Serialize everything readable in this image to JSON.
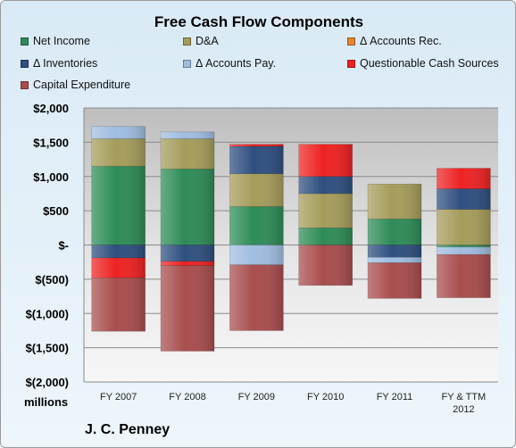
{
  "chart_data": {
    "type": "bar",
    "stacked": true,
    "title": "Free Cash Flow Components",
    "units_label": "millions",
    "footer": "J. C. Penney",
    "categories": [
      "FY 2007",
      "FY 2008",
      "FY 2009",
      "FY 2010",
      "FY 2011",
      [
        "FY & TTM",
        "2012"
      ]
    ],
    "ylim": [
      -2000,
      2000
    ],
    "yticks": [
      2000,
      1500,
      1000,
      500,
      0,
      -500,
      -1000,
      -1500,
      -2000
    ],
    "ytick_labels": [
      "$2,000",
      "$1,500",
      "$1,000",
      "$500",
      "$-",
      "$(500)",
      "$(1,000)",
      "$(1,500)",
      "$(2,000)"
    ],
    "grid": true,
    "legend_position": "top",
    "series": [
      {
        "name": "Net Income",
        "color": "#2e8b57",
        "values": [
          1150,
          1110,
          560,
          250,
          380,
          -30
        ]
      },
      {
        "name": "D&A",
        "color": "#a59c5a",
        "values": [
          400,
          440,
          480,
          500,
          510,
          520
        ]
      },
      {
        "name": "Δ Accounts Rec.",
        "color": "#e8852e",
        "values": [
          0,
          0,
          0,
          0,
          0,
          0
        ]
      },
      {
        "name": "Δ Inventories",
        "color": "#2f4f7f",
        "values": [
          -190,
          -240,
          400,
          250,
          -180,
          300
        ]
      },
      {
        "name": "Δ Accounts Pay.",
        "color": "#9fbde0",
        "values": [
          180,
          100,
          -290,
          0,
          -80,
          -110
        ]
      },
      {
        "name": "Questionable Cash Sources",
        "color": "#ee2222",
        "values": [
          -290,
          -60,
          30,
          470,
          0,
          300
        ]
      },
      {
        "name": "Capital Expenditure",
        "color": "#a84d4d",
        "values": [
          -780,
          -1250,
          -960,
          -590,
          -520,
          -630
        ]
      }
    ]
  }
}
